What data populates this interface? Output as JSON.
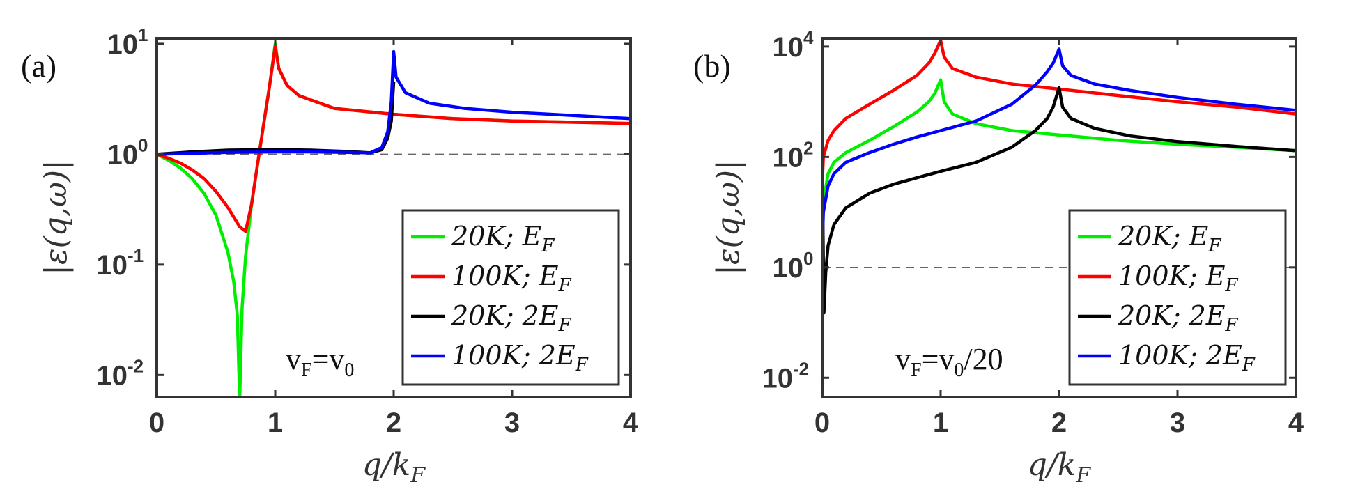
{
  "chart_data": [
    {
      "type": "line",
      "panel_label": "(a)",
      "xlabel": "q/k_F",
      "ylabel": "|ε(q,ω)|",
      "xlim": [
        0,
        4
      ],
      "ylog_exp_range": [
        -2.2,
        1.05
      ],
      "x_ticks": [
        "0",
        "1",
        "2",
        "3",
        "4"
      ],
      "y_ticks": [
        {
          "base": "10",
          "exp": "1",
          "value": 10
        },
        {
          "base": "10",
          "exp": "0",
          "value": 1
        },
        {
          "base": "10",
          "exp": "-1",
          "value": 0.1
        },
        {
          "base": "10",
          "exp": "-2",
          "value": 0.01
        }
      ],
      "reference_line": 1,
      "annotation": "vF=v0",
      "legend_position": "lower-right",
      "series": [
        {
          "name": "20K; E_F",
          "color": "#00ee00",
          "points": [
            [
              0,
              1.0
            ],
            [
              0.1,
              0.88
            ],
            [
              0.2,
              0.75
            ],
            [
              0.3,
              0.6
            ],
            [
              0.4,
              0.44
            ],
            [
              0.5,
              0.28
            ],
            [
              0.6,
              0.13
            ],
            [
              0.65,
              0.07
            ],
            [
              0.68,
              0.035
            ],
            [
              0.7,
              0.006
            ],
            [
              0.72,
              0.04
            ],
            [
              0.75,
              0.12
            ],
            [
              0.8,
              0.35
            ],
            [
              0.85,
              0.8
            ],
            [
              0.9,
              1.8
            ],
            [
              0.95,
              4
            ],
            [
              1.0,
              10
            ],
            [
              1.03,
              6
            ],
            [
              1.1,
              4.2
            ],
            [
              1.2,
              3.4
            ],
            [
              1.5,
              2.6
            ],
            [
              2.0,
              2.3
            ],
            [
              2.5,
              2.1
            ],
            [
              3.0,
              2.0
            ],
            [
              3.5,
              1.95
            ],
            [
              4.0,
              1.9
            ]
          ]
        },
        {
          "name": "100K; E_F",
          "color": "#ff0000",
          "points": [
            [
              0,
              1.0
            ],
            [
              0.1,
              0.92
            ],
            [
              0.2,
              0.83
            ],
            [
              0.3,
              0.72
            ],
            [
              0.4,
              0.6
            ],
            [
              0.5,
              0.46
            ],
            [
              0.6,
              0.33
            ],
            [
              0.7,
              0.22
            ],
            [
              0.75,
              0.2
            ],
            [
              0.8,
              0.35
            ],
            [
              0.85,
              0.8
            ],
            [
              0.9,
              1.8
            ],
            [
              0.95,
              4
            ],
            [
              1.0,
              9.5
            ],
            [
              1.03,
              6
            ],
            [
              1.1,
              4.2
            ],
            [
              1.2,
              3.4
            ],
            [
              1.5,
              2.6
            ],
            [
              2.0,
              2.3
            ],
            [
              2.5,
              2.1
            ],
            [
              3.0,
              2.0
            ],
            [
              3.5,
              1.95
            ],
            [
              4.0,
              1.9
            ]
          ]
        },
        {
          "name": "20K; 2E_F",
          "color": "#000000",
          "points": [
            [
              0,
              1.0
            ],
            [
              0.3,
              1.05
            ],
            [
              0.6,
              1.09
            ],
            [
              1.0,
              1.1
            ],
            [
              1.3,
              1.09
            ],
            [
              1.6,
              1.06
            ],
            [
              1.8,
              1.03
            ],
            [
              1.9,
              1.1
            ],
            [
              1.95,
              1.4
            ],
            [
              1.98,
              2.0
            ],
            [
              2.0,
              4.5
            ]
          ]
        },
        {
          "name": "100K; 2E_F",
          "color": "#0000ff",
          "points": [
            [
              0,
              1.0
            ],
            [
              0.3,
              1.02
            ],
            [
              0.6,
              1.04
            ],
            [
              1.0,
              1.05
            ],
            [
              1.3,
              1.05
            ],
            [
              1.6,
              1.04
            ],
            [
              1.8,
              1.03
            ],
            [
              1.9,
              1.15
            ],
            [
              1.95,
              1.6
            ],
            [
              1.98,
              3.0
            ],
            [
              2.0,
              8.5
            ],
            [
              2.02,
              5
            ],
            [
              2.1,
              3.6
            ],
            [
              2.3,
              2.9
            ],
            [
              2.6,
              2.6
            ],
            [
              3.0,
              2.4
            ],
            [
              3.5,
              2.25
            ],
            [
              4.0,
              2.1
            ]
          ]
        }
      ]
    },
    {
      "type": "line",
      "panel_label": "(b)",
      "xlabel": "q/k_F",
      "ylabel": "|ε(q,ω)|",
      "xlim": [
        0,
        4
      ],
      "ylog_exp_range": [
        -2.35,
        4.15
      ],
      "x_ticks": [
        "0",
        "1",
        "2",
        "3",
        "4"
      ],
      "y_ticks": [
        {
          "base": "10",
          "exp": "4",
          "value": 10000
        },
        {
          "base": "10",
          "exp": "2",
          "value": 100
        },
        {
          "base": "10",
          "exp": "0",
          "value": 1
        },
        {
          "base": "10",
          "exp": "-2",
          "value": 0.01
        }
      ],
      "reference_line": 1,
      "annotation": "vF=v0/20",
      "legend_position": "lower-right",
      "series": [
        {
          "name": "20K; E_F",
          "color": "#00ee00",
          "points": [
            [
              0,
              2
            ],
            [
              0.01,
              15
            ],
            [
              0.05,
              50
            ],
            [
              0.1,
              80
            ],
            [
              0.2,
              120
            ],
            [
              0.4,
              200
            ],
            [
              0.6,
              350
            ],
            [
              0.8,
              650
            ],
            [
              0.9,
              1000
            ],
            [
              0.95,
              1400
            ],
            [
              1.0,
              2500
            ],
            [
              1.03,
              1000
            ],
            [
              1.1,
              600
            ],
            [
              1.3,
              400
            ],
            [
              1.6,
              300
            ],
            [
              2.0,
              250
            ],
            [
              2.5,
              200
            ],
            [
              3.0,
              170
            ],
            [
              3.5,
              150
            ],
            [
              4.0,
              130
            ]
          ]
        },
        {
          "name": "100K; E_F",
          "color": "#ff0000",
          "points": [
            [
              0,
              30
            ],
            [
              0.01,
              100
            ],
            [
              0.05,
              200
            ],
            [
              0.1,
              300
            ],
            [
              0.2,
              500
            ],
            [
              0.4,
              900
            ],
            [
              0.6,
              1600
            ],
            [
              0.8,
              3000
            ],
            [
              0.9,
              5000
            ],
            [
              0.95,
              7500
            ],
            [
              1.0,
              13000
            ],
            [
              1.03,
              6500
            ],
            [
              1.1,
              4000
            ],
            [
              1.3,
              2800
            ],
            [
              1.6,
              2100
            ],
            [
              2.0,
              1700
            ],
            [
              2.5,
              1300
            ],
            [
              3.0,
              1000
            ],
            [
              3.5,
              800
            ],
            [
              4.0,
              600
            ]
          ]
        },
        {
          "name": "20K; 2E_F",
          "color": "#000000",
          "points": [
            [
              0,
              100
            ],
            [
              0.015,
              0.15
            ],
            [
              0.03,
              0.8
            ],
            [
              0.05,
              2.5
            ],
            [
              0.1,
              6
            ],
            [
              0.2,
              12
            ],
            [
              0.4,
              22
            ],
            [
              0.6,
              32
            ],
            [
              0.8,
              42
            ],
            [
              1.0,
              55
            ],
            [
              1.3,
              80
            ],
            [
              1.6,
              150
            ],
            [
              1.8,
              300
            ],
            [
              1.9,
              500
            ],
            [
              1.95,
              800
            ],
            [
              2.0,
              1800
            ],
            [
              2.03,
              800
            ],
            [
              2.1,
              500
            ],
            [
              2.3,
              330
            ],
            [
              2.6,
              240
            ],
            [
              3.0,
              190
            ],
            [
              3.5,
              155
            ],
            [
              4.0,
              130
            ]
          ]
        },
        {
          "name": "100K; 2E_F",
          "color": "#0000ff",
          "points": [
            [
              0,
              2
            ],
            [
              0.01,
              10
            ],
            [
              0.05,
              30
            ],
            [
              0.1,
              50
            ],
            [
              0.2,
              80
            ],
            [
              0.4,
              120
            ],
            [
              0.6,
              170
            ],
            [
              0.8,
              230
            ],
            [
              1.0,
              300
            ],
            [
              1.3,
              450
            ],
            [
              1.6,
              900
            ],
            [
              1.8,
              2000
            ],
            [
              1.9,
              3500
            ],
            [
              1.95,
              5000
            ],
            [
              2.0,
              9000
            ],
            [
              2.03,
              4500
            ],
            [
              2.1,
              3000
            ],
            [
              2.3,
              2100
            ],
            [
              2.6,
              1600
            ],
            [
              3.0,
              1200
            ],
            [
              3.5,
              900
            ],
            [
              4.0,
              700
            ]
          ]
        }
      ]
    }
  ]
}
